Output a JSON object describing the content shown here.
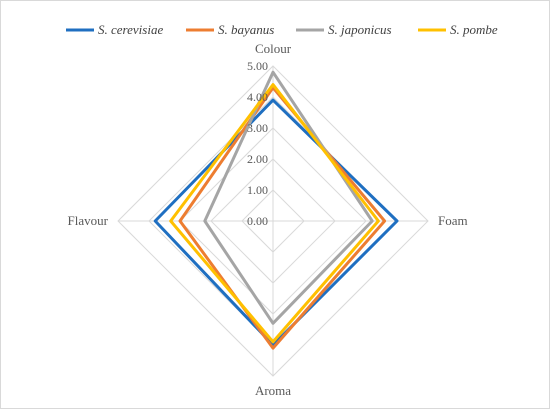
{
  "chart_data": {
    "type": "radar",
    "axes": [
      "Colour",
      "Foam",
      "Aroma",
      "Flavour"
    ],
    "r_ticks": [
      "0.00",
      "1.00",
      "2.00",
      "3.00",
      "4.00",
      "5.00"
    ],
    "r_range": [
      0,
      5
    ],
    "grid": true,
    "legend_position": "top",
    "series": [
      {
        "name": "S. cerevisiae",
        "color": "#1f6fc1",
        "values": [
          3.9,
          4.0,
          4.0,
          3.8
        ]
      },
      {
        "name": "S. bayanus",
        "color": "#ed7d31",
        "values": [
          4.3,
          3.6,
          4.1,
          3.0
        ]
      },
      {
        "name": "S. japonicus",
        "color": "#a5a5a5",
        "values": [
          4.8,
          3.2,
          3.3,
          2.2
        ]
      },
      {
        "name": "S. pombe",
        "color": "#ffc000",
        "values": [
          4.4,
          3.4,
          3.9,
          3.3
        ]
      }
    ]
  }
}
